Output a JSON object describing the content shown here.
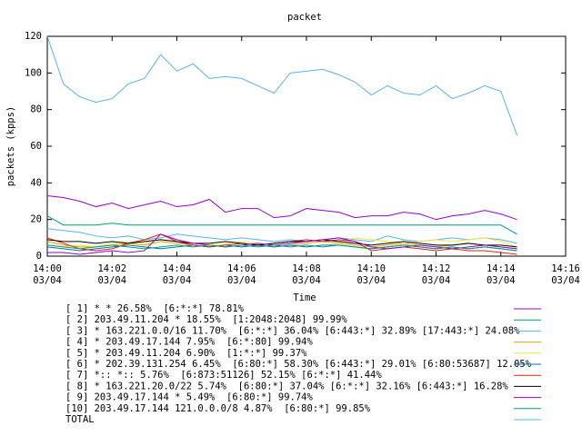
{
  "chart_data": {
    "type": "line",
    "title": "packet",
    "ylabel": "packets (kpps)",
    "xlabel": "Time",
    "xlim": [
      0,
      16
    ],
    "ylim": [
      0,
      120
    ],
    "xticks": [
      {
        "value": 0,
        "label": "14:00\n03/04"
      },
      {
        "value": 2,
        "label": "14:02\n03/04"
      },
      {
        "value": 4,
        "label": "14:04\n03/04"
      },
      {
        "value": 6,
        "label": "14:06\n03/04"
      },
      {
        "value": 8,
        "label": "14:08\n03/04"
      },
      {
        "value": 10,
        "label": "14:10\n03/04"
      },
      {
        "value": 12,
        "label": "14:12\n03/04"
      },
      {
        "value": 14,
        "label": "14:14\n03/04"
      },
      {
        "value": 16,
        "label": "14:16\n03/04"
      }
    ],
    "yticks": [
      0,
      20,
      40,
      60,
      80,
      100,
      120
    ],
    "x": [
      0,
      0.5,
      1,
      1.5,
      2,
      2.5,
      3,
      3.5,
      4,
      4.5,
      5,
      5.5,
      6,
      6.5,
      7,
      7.5,
      8,
      8.5,
      9,
      9.5,
      10,
      10.5,
      11,
      11.5,
      12,
      12.5,
      13,
      13.5,
      14,
      14.5
    ],
    "series": [
      {
        "name": "[ 1] * * 26.58%  [6:*:*] 78.81%",
        "color": "#9400d3",
        "values": [
          33,
          32,
          30,
          27,
          29,
          26,
          28,
          30,
          27,
          28,
          31,
          24,
          26,
          26,
          21,
          22,
          26,
          25,
          24,
          21,
          22,
          22,
          24,
          23,
          20,
          22,
          23,
          25,
          23,
          20
        ]
      },
      {
        "name": "[ 2] 203.49.11.204 * 18.55%  [1:2048:2048] 99.99%",
        "color": "#009e73",
        "values": [
          22,
          17,
          17,
          17,
          18,
          17,
          17,
          17,
          17,
          17,
          17,
          17,
          17,
          17,
          17,
          17,
          17,
          17,
          17,
          17,
          17,
          17,
          17,
          17,
          17,
          17,
          17,
          17,
          17,
          12
        ]
      },
      {
        "name": "[ 3] * 163.221.0.0/16 11.70%  [6:*:*] 36.04% [6:443:*] 32.89% [17:443:*] 24.08%",
        "color": "#56b4e9",
        "values": [
          15,
          14,
          13,
          11,
          10,
          11,
          9,
          10,
          12,
          11,
          10,
          9,
          10,
          9,
          8,
          9,
          8,
          9,
          10,
          9,
          8,
          11,
          9,
          8,
          9,
          10,
          9,
          10,
          9,
          7
        ]
      },
      {
        "name": "[ 4] * 203.49.17.144 7.95%  [6:*:80] 99.94%",
        "color": "#e69f00",
        "values": [
          8,
          6,
          5,
          5,
          6,
          7,
          6,
          8,
          7,
          6,
          5,
          6,
          7,
          6,
          5,
          6,
          7,
          8,
          7,
          6,
          5,
          6,
          7,
          6,
          5,
          6,
          7,
          6,
          5,
          4
        ]
      },
      {
        "name": "[ 5] * 203.49.11.204 6.90%  [1:*:*] 99.37%",
        "color": "#f0e442",
        "values": [
          6,
          5,
          6,
          5,
          7,
          8,
          7,
          9,
          8,
          7,
          6,
          7,
          8,
          7,
          6,
          7,
          8,
          9,
          8,
          10,
          9,
          8,
          7,
          8,
          9,
          8,
          9,
          10,
          8,
          5
        ]
      },
      {
        "name": "[ 6] * 202.39.131.254 6.45%  [6:80:*] 58.30% [6:443:*] 29.01% [6:80:53687] 12.05%",
        "color": "#0072b2",
        "values": [
          5,
          4,
          3,
          4,
          5,
          6,
          5,
          4,
          5,
          6,
          5,
          6,
          5,
          6,
          5,
          6,
          5,
          6,
          6,
          5,
          4,
          5,
          6,
          5,
          4,
          5,
          4,
          5,
          4,
          3
        ]
      },
      {
        "name": "[ 7] *:: *:: 5.76%  [6:873:51126] 52.15% [6:*:*] 41.44%",
        "color": "#e51e10",
        "values": [
          10,
          7,
          4,
          3,
          4,
          7,
          9,
          12,
          8,
          6,
          5,
          6,
          7,
          6,
          7,
          8,
          9,
          8,
          9,
          8,
          3,
          4,
          5,
          4,
          3,
          4,
          3,
          3,
          2,
          1
        ]
      },
      {
        "name": "[ 8] * 163.221.20.0/22 5.74%  [6:80:*] 37.04% [6:*:*] 32.16% [6:443:*] 16.28%",
        "color": "#000000",
        "values": [
          9,
          8,
          8,
          7,
          8,
          7,
          8,
          9,
          8,
          7,
          7,
          8,
          7,
          6,
          7,
          8,
          8,
          9,
          8,
          7,
          6,
          7,
          8,
          7,
          6,
          6,
          7,
          6,
          6,
          5
        ]
      },
      {
        "name": "[ 9] 203.49.17.144 * 5.49%  [6:80:*] 99.74%",
        "color": "#9400d3",
        "values": [
          2,
          2,
          1,
          2,
          3,
          2,
          3,
          12,
          9,
          7,
          6,
          5,
          6,
          7,
          6,
          7,
          8,
          9,
          10,
          8,
          5,
          4,
          5,
          6,
          5,
          4,
          5,
          6,
          5,
          4
        ]
      },
      {
        "name": "[10] 203.49.17.144 121.0.0.0/8 4.87%  [6:80:*] 99.85%",
        "color": "#009e73",
        "values": [
          6,
          5,
          4,
          5,
          6,
          5,
          4,
          5,
          6,
          5,
          6,
          5,
          6,
          5,
          6,
          5,
          6,
          5,
          6,
          5,
          4,
          5,
          6,
          5,
          4,
          5,
          4,
          5,
          4,
          3
        ]
      },
      {
        "name": "TOTAL",
        "color": "#56b4e9",
        "values": [
          120,
          94,
          87,
          84,
          86,
          94,
          97,
          110,
          101,
          105,
          97,
          98,
          97,
          93,
          89,
          100,
          101,
          102,
          99,
          95,
          88,
          93,
          89,
          88,
          93,
          86,
          89,
          93,
          90,
          66
        ]
      }
    ]
  }
}
